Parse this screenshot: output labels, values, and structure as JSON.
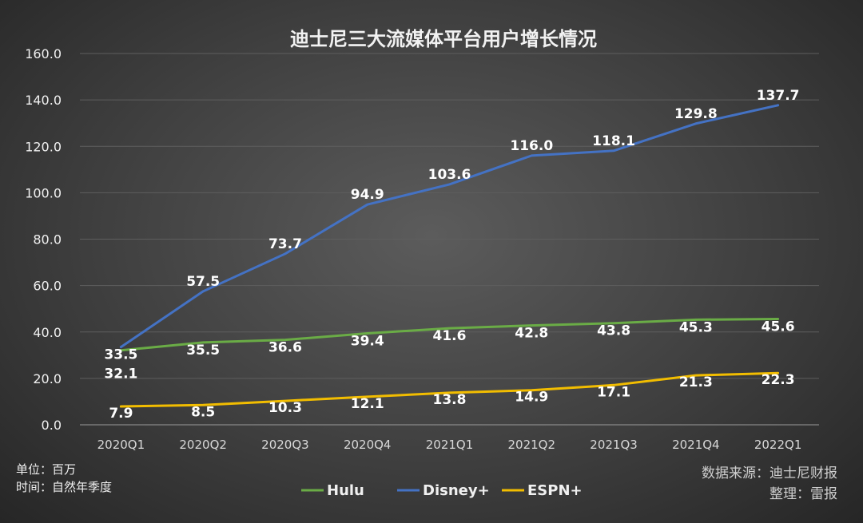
{
  "chart_data": {
    "type": "line",
    "title": "迪士尼三大流媒体平台用户增长情况",
    "categories": [
      "2020Q1",
      "2020Q2",
      "2020Q3",
      "2020Q4",
      "2021Q1",
      "2021Q2",
      "2021Q3",
      "2021Q4",
      "2022Q1"
    ],
    "series": [
      {
        "name": "Hulu",
        "color": "#6aac46",
        "values": [
          32.1,
          35.5,
          36.6,
          39.4,
          41.6,
          42.8,
          43.8,
          45.3,
          45.6
        ]
      },
      {
        "name": "Disney+",
        "color": "#4472c4",
        "values": [
          33.5,
          57.5,
          73.7,
          94.9,
          103.6,
          116.0,
          118.1,
          129.8,
          137.7
        ]
      },
      {
        "name": "ESPN+",
        "color": "#f2bd00",
        "values": [
          7.9,
          8.5,
          10.3,
          12.1,
          13.8,
          14.9,
          17.1,
          21.3,
          22.3
        ]
      }
    ],
    "yticks": [
      "0.0",
      "20.0",
      "40.0",
      "60.0",
      "80.0",
      "100.0",
      "120.0",
      "140.0",
      "160.0"
    ],
    "ylim": [
      0,
      160
    ],
    "grid": true,
    "legend_position": "bottom"
  },
  "notes": {
    "unit": "单位：百万",
    "time": "时间：自然年季度"
  },
  "source": {
    "data_source": "数据来源：迪士尼财报",
    "editor": "整理：雷报"
  }
}
